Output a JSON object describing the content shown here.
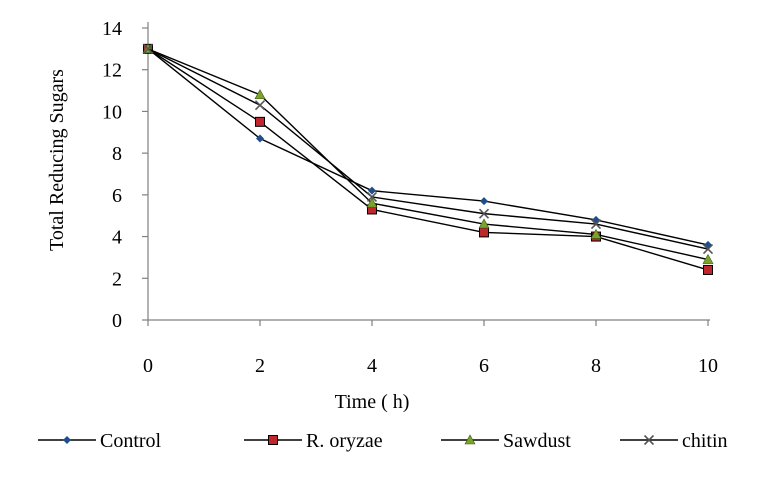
{
  "chart_data": {
    "type": "line",
    "title": "",
    "xlabel": "Time ( h)",
    "ylabel": "Total Reducing Sugars",
    "x": [
      0,
      2,
      4,
      6,
      8,
      10
    ],
    "xticks": [
      "0",
      "2",
      "4",
      "6",
      "8",
      "10"
    ],
    "yticks": [
      "0",
      "2",
      "4",
      "6",
      "8",
      "10",
      "12",
      "14"
    ],
    "xlim": [
      0,
      10
    ],
    "ylim": [
      0,
      14
    ],
    "grid": false,
    "legend_position": "bottom",
    "series": [
      {
        "name": "Control",
        "marker": "diamond",
        "color": "#1f4e8c",
        "values": [
          13.0,
          8.7,
          6.2,
          5.7,
          4.8,
          3.6
        ]
      },
      {
        "name": "R. oryzae",
        "marker": "square",
        "color": "#c0272d",
        "values": [
          13.0,
          9.5,
          5.3,
          4.2,
          4.0,
          2.4
        ]
      },
      {
        "name": "Sawdust",
        "marker": "triangle",
        "color": "#7aa32b",
        "values": [
          13.0,
          10.8,
          5.6,
          4.6,
          4.1,
          2.9
        ]
      },
      {
        "name": "chitin",
        "marker": "x",
        "color": "#555555",
        "values": [
          13.0,
          10.3,
          5.9,
          5.1,
          4.6,
          3.4
        ]
      }
    ]
  }
}
